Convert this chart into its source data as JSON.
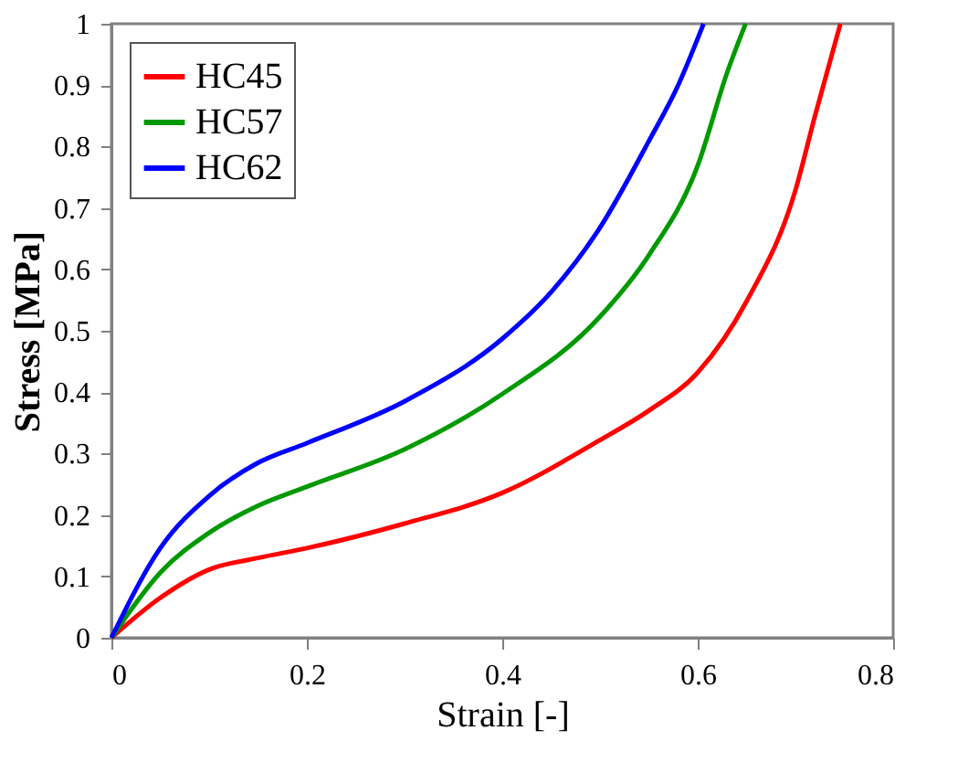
{
  "chart_data": {
    "type": "line",
    "xlabel": "Strain [-]",
    "ylabel": "Stress [MPa]",
    "xlim": [
      0,
      0.8
    ],
    "xticks": [
      0,
      0.2,
      0.4,
      0.6,
      0.8
    ],
    "ylim": [
      0,
      1
    ],
    "yticks": [
      0,
      0.1,
      0.2,
      0.3,
      0.4,
      0.5,
      0.6,
      0.7,
      0.8,
      0.9,
      1
    ],
    "grid": false,
    "legend": "top left",
    "marker": "none",
    "line_style": "solid",
    "series": [
      {
        "name": "HC45",
        "color": "#ff0000",
        "x": [
          0,
          0.05,
          0.1,
          0.15,
          0.2,
          0.3,
          0.4,
          0.5,
          0.55,
          0.6,
          0.65,
          0.7,
          0.72,
          0.746
        ],
        "values": [
          0,
          0.065,
          0.111,
          0.13,
          0.146,
          0.186,
          0.236,
          0.322,
          0.37,
          0.432,
          0.548,
          0.729,
          0.85,
          1
        ]
      },
      {
        "name": "HC57",
        "color": "#009900",
        "x": [
          0,
          0.05,
          0.1,
          0.15,
          0.2,
          0.3,
          0.4,
          0.5,
          0.55,
          0.6,
          0.63,
          0.649
        ],
        "values": [
          0,
          0.106,
          0.171,
          0.215,
          0.246,
          0.307,
          0.397,
          0.523,
          0.623,
          0.769,
          0.92,
          1
        ]
      },
      {
        "name": "HC62",
        "color": "#0000ff",
        "x": [
          0,
          0.05,
          0.1,
          0.15,
          0.2,
          0.3,
          0.4,
          0.45,
          0.5,
          0.55,
          0.58,
          0.606
        ],
        "values": [
          0,
          0.146,
          0.231,
          0.285,
          0.317,
          0.385,
          0.487,
          0.563,
          0.668,
          0.809,
          0.9,
          1
        ]
      }
    ]
  }
}
